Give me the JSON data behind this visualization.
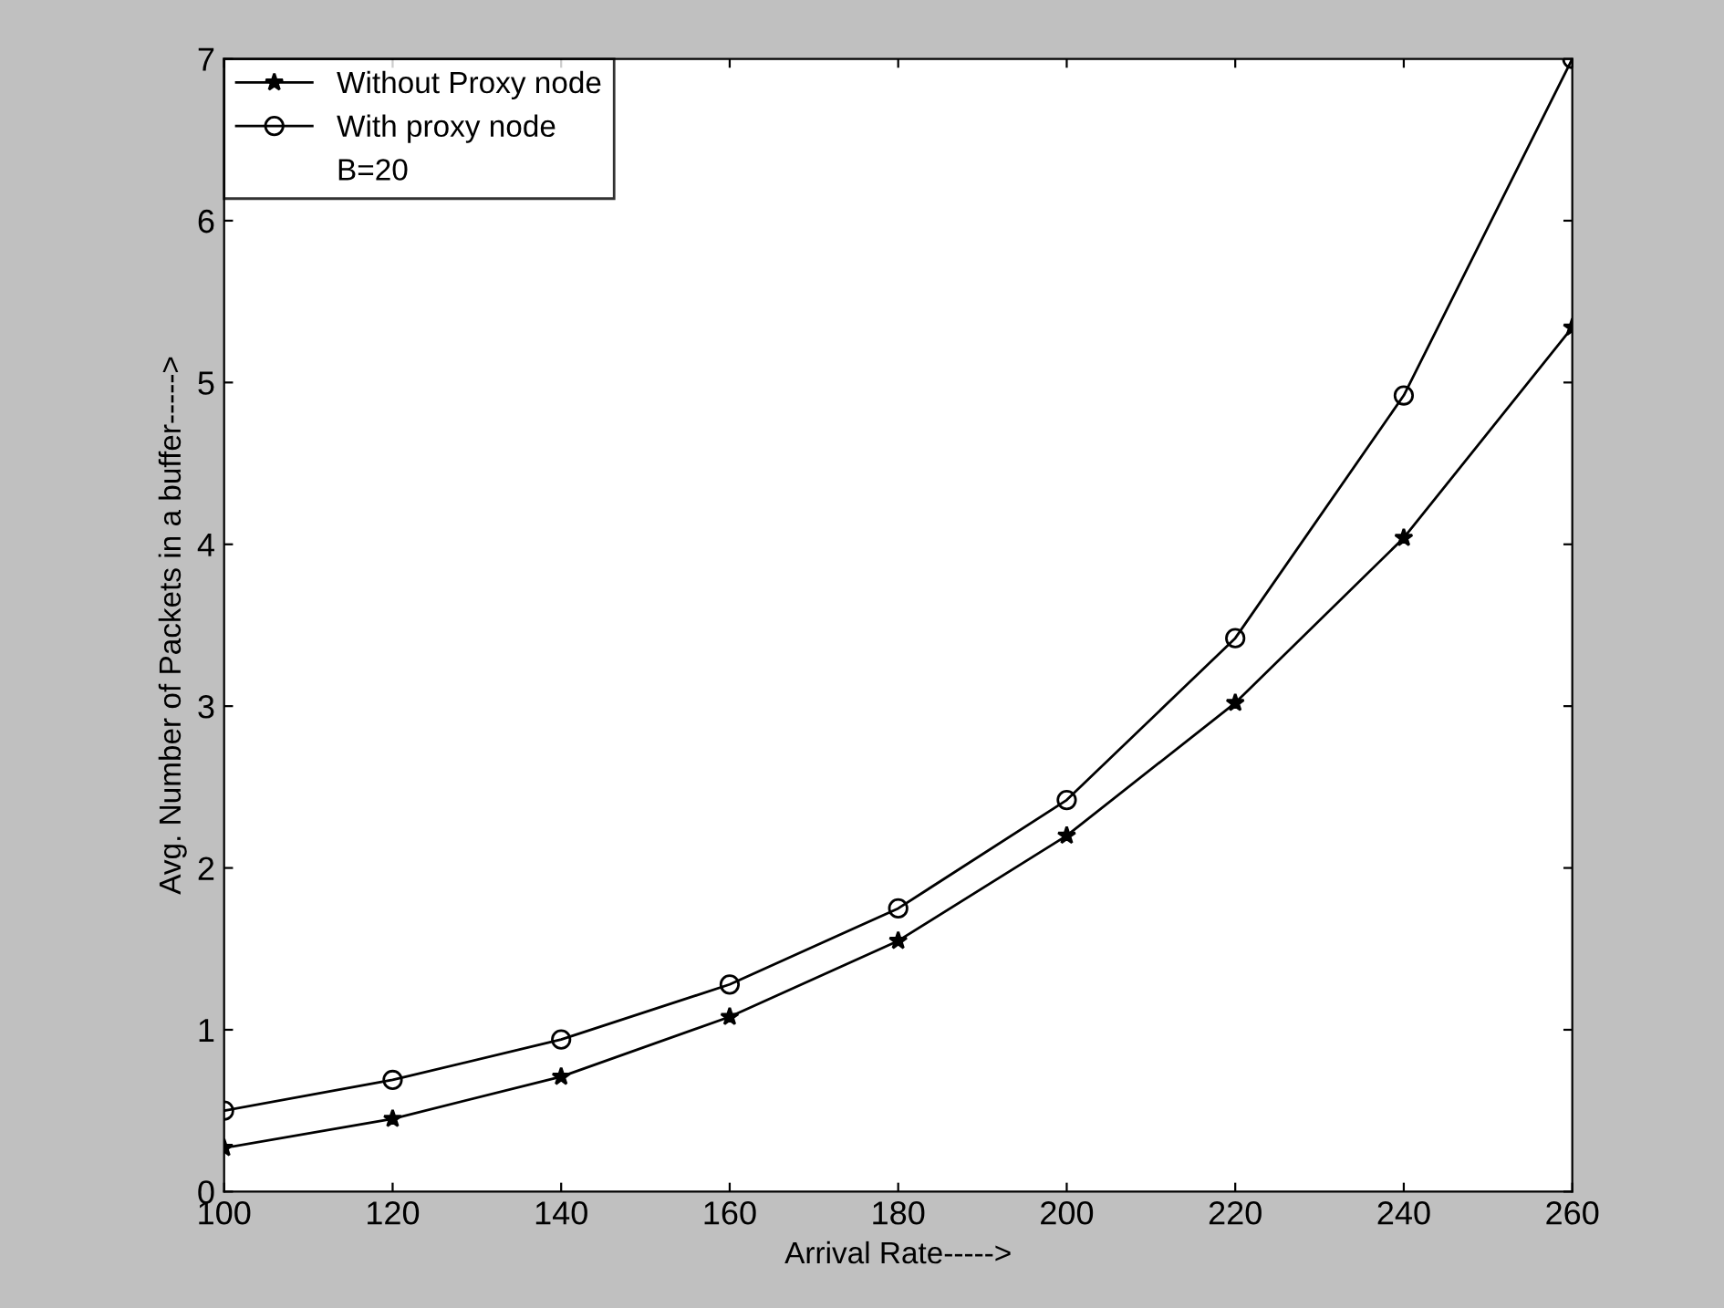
{
  "chart_data": {
    "type": "line",
    "xlabel": "Arrival Rate----->",
    "ylabel": "Avg. Number of Packets in a buffer----->",
    "x": [
      100,
      120,
      140,
      160,
      180,
      200,
      220,
      240,
      260
    ],
    "series": [
      {
        "name": "Without Proxy node",
        "color": "#000000",
        "marker": "star",
        "values": [
          0.27,
          0.45,
          0.71,
          1.08,
          1.55,
          2.2,
          3.02,
          4.04,
          5.34
        ]
      },
      {
        "name": "With proxy node",
        "color": "#000000",
        "marker": "circle",
        "values": [
          0.5,
          0.69,
          0.94,
          1.28,
          1.75,
          2.42,
          3.42,
          4.92,
          7.0
        ]
      }
    ],
    "annotations": [
      "B=20"
    ],
    "xlim": [
      100,
      260
    ],
    "xticks": [
      100,
      120,
      140,
      160,
      180,
      200,
      220,
      240,
      260
    ],
    "ylim": [
      0,
      7
    ],
    "yticks": [
      0,
      1,
      2,
      3,
      4,
      5,
      6,
      7
    ],
    "grid": false,
    "legend": "top left",
    "line_style": "solid"
  }
}
